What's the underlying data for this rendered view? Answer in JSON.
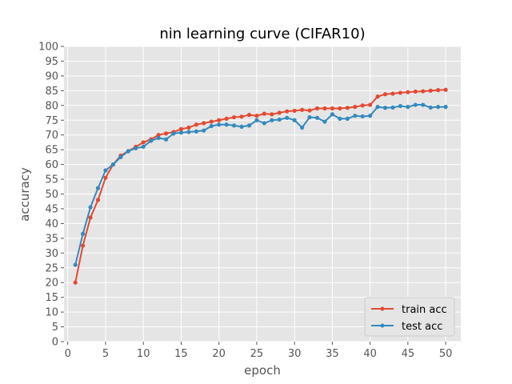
{
  "chart_data": {
    "type": "line",
    "title": "nin learning curve (CIFAR10)",
    "xlabel": "epoch",
    "ylabel": "accuracy",
    "xlim": [
      -0.5,
      52
    ],
    "ylim": [
      0,
      100
    ],
    "xticks": [
      0,
      5,
      10,
      15,
      20,
      25,
      30,
      35,
      40,
      45,
      50
    ],
    "yticks": [
      0,
      5,
      10,
      15,
      20,
      25,
      30,
      35,
      40,
      45,
      50,
      55,
      60,
      65,
      70,
      75,
      80,
      85,
      90,
      95,
      100
    ],
    "grid": true,
    "legend_position": "bottom-right",
    "x": [
      1,
      2,
      3,
      4,
      5,
      6,
      7,
      8,
      9,
      10,
      11,
      12,
      13,
      14,
      15,
      16,
      17,
      18,
      19,
      20,
      21,
      22,
      23,
      24,
      25,
      26,
      27,
      28,
      29,
      30,
      31,
      32,
      33,
      34,
      35,
      36,
      37,
      38,
      39,
      40,
      41,
      42,
      43,
      44,
      45,
      46,
      47,
      48,
      49,
      50
    ],
    "series": [
      {
        "name": "train acc",
        "color": "#e24a33",
        "values": [
          20.0,
          32.5,
          42.0,
          48.0,
          55.5,
          60.0,
          63.0,
          64.5,
          66.0,
          67.5,
          68.5,
          70.0,
          70.5,
          71.0,
          72.0,
          72.5,
          73.5,
          74.0,
          74.5,
          75.0,
          75.5,
          76.0,
          76.2,
          76.8,
          76.5,
          77.2,
          77.0,
          77.5,
          78.0,
          78.2,
          78.5,
          78.3,
          79.0,
          79.0,
          79.0,
          79.0,
          79.2,
          79.5,
          80.0,
          80.2,
          83.0,
          83.8,
          84.0,
          84.3,
          84.5,
          84.7,
          84.8,
          85.0,
          85.2,
          85.3
        ]
      },
      {
        "name": "test acc",
        "color": "#348abd",
        "values": [
          26.0,
          36.5,
          45.5,
          52.0,
          58.0,
          60.0,
          62.5,
          64.5,
          65.5,
          66.0,
          68.0,
          69.0,
          68.5,
          70.5,
          70.8,
          71.0,
          71.2,
          71.5,
          73.0,
          73.5,
          73.5,
          73.2,
          72.8,
          73.2,
          75.0,
          74.0,
          75.0,
          75.2,
          75.8,
          75.0,
          72.5,
          76.0,
          75.8,
          74.5,
          77.0,
          75.5,
          75.5,
          76.5,
          76.3,
          76.5,
          79.5,
          79.2,
          79.3,
          79.8,
          79.5,
          80.2,
          80.2,
          79.3,
          79.5,
          79.5
        ]
      }
    ]
  }
}
